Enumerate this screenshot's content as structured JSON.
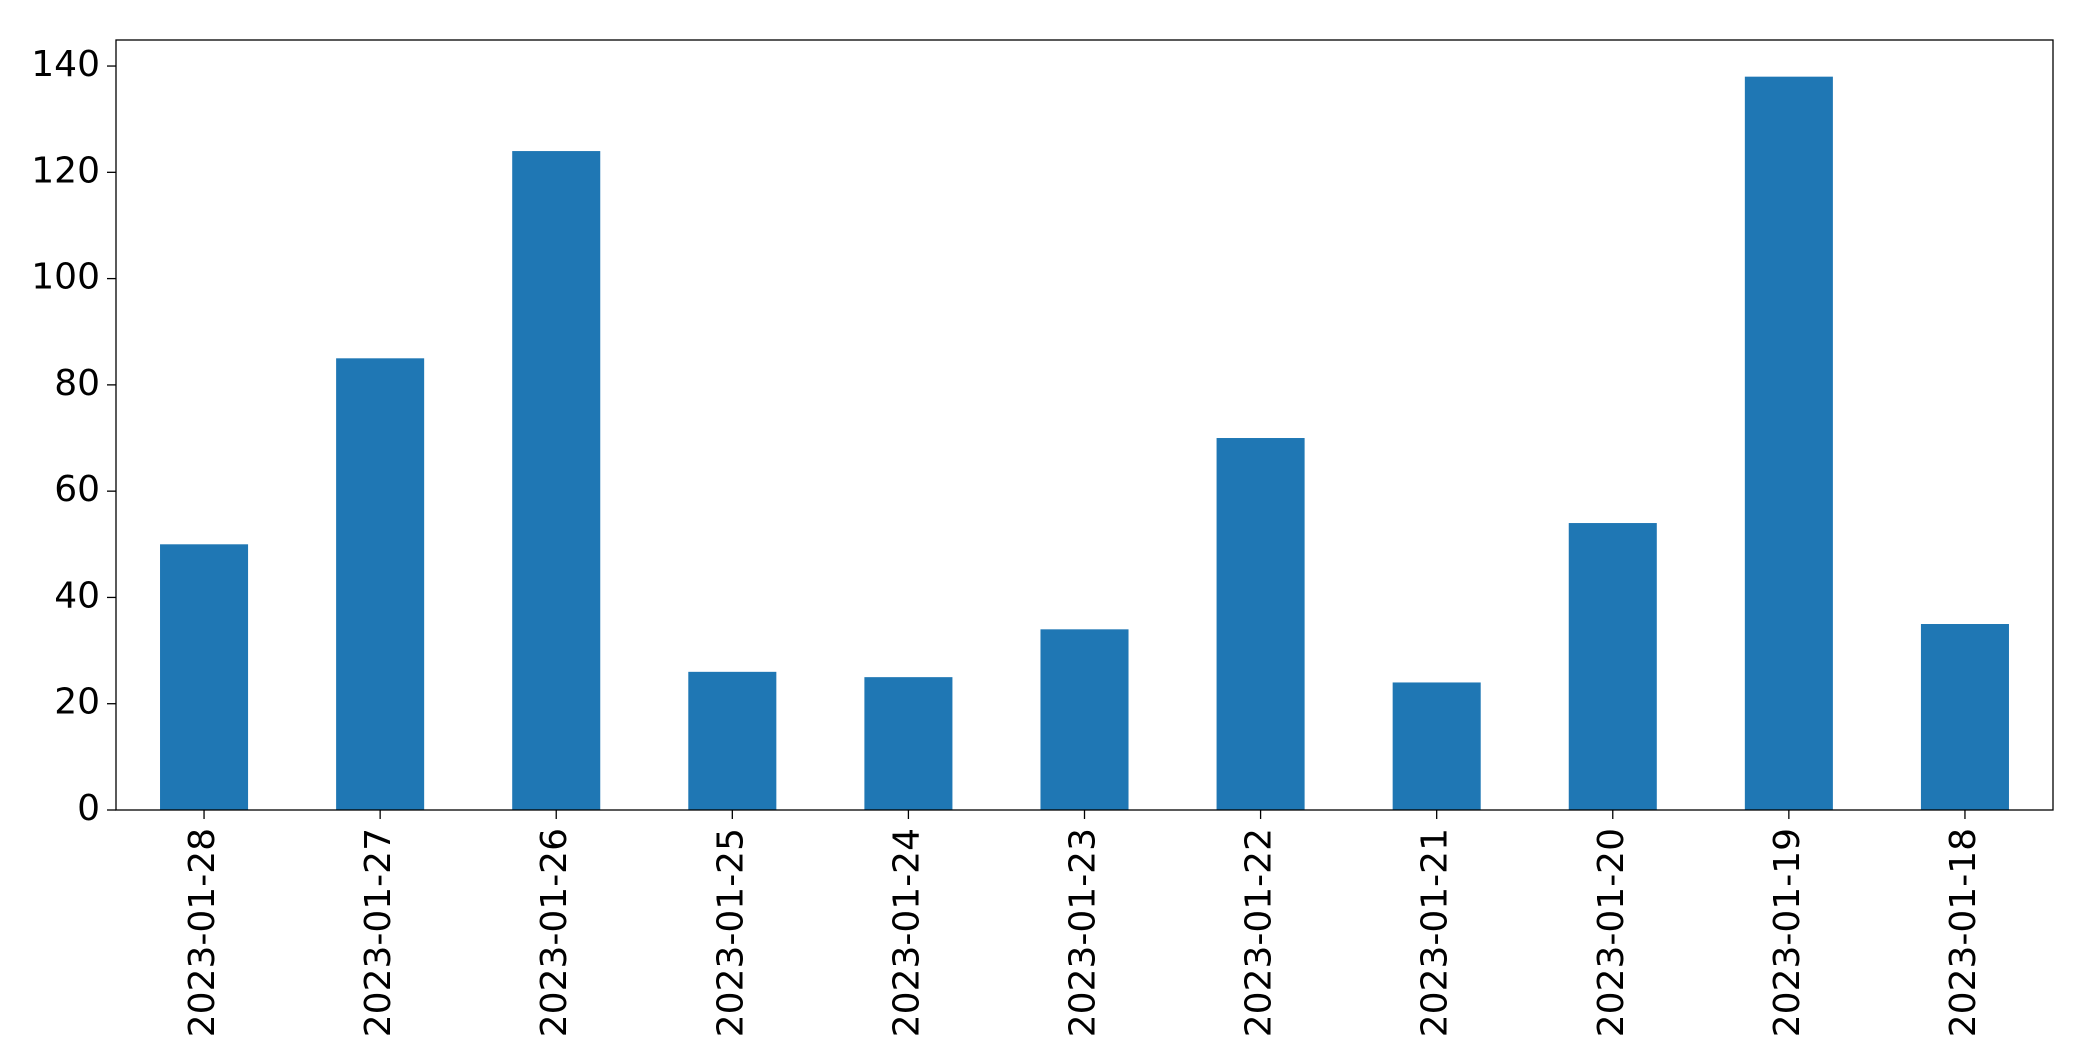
{
  "chart_data": {
    "type": "bar",
    "categories": [
      "2023-01-28",
      "2023-01-27",
      "2023-01-26",
      "2023-01-25",
      "2023-01-24",
      "2023-01-23",
      "2023-01-22",
      "2023-01-21",
      "2023-01-20",
      "2023-01-19",
      "2023-01-18"
    ],
    "values": [
      50,
      85,
      124,
      26,
      25,
      34,
      70,
      24,
      54,
      138,
      35
    ],
    "color": "#1f77b4",
    "ylim": [
      0,
      144.9
    ],
    "yticks": [
      0,
      20,
      40,
      60,
      80,
      100,
      120,
      140
    ],
    "grid": false
  }
}
